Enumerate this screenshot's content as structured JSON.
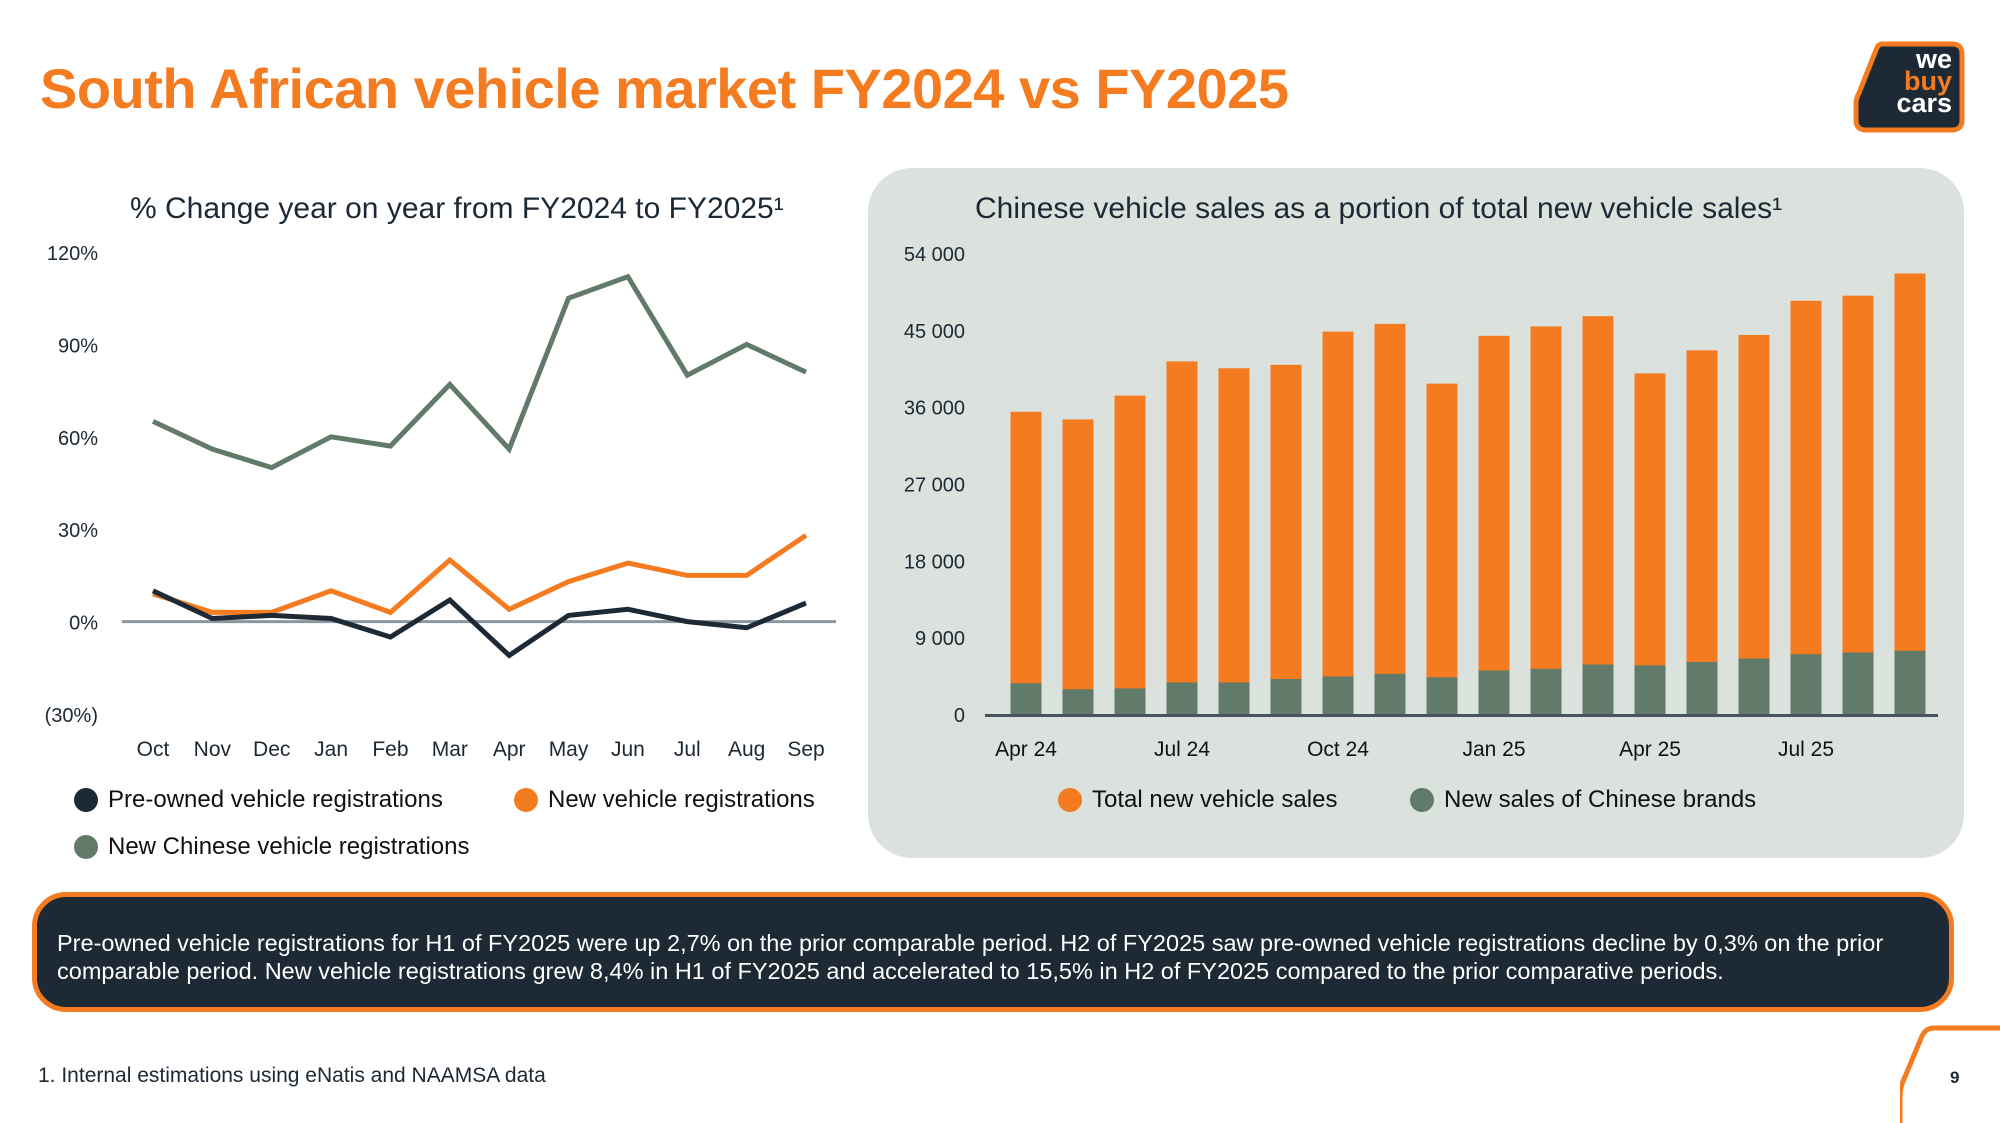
{
  "page": {
    "title": "South African vehicle market FY2024 vs FY2025",
    "logo": {
      "line1": "we",
      "line2": "buy",
      "line3": "cars"
    },
    "summary": "Pre-owned vehicle registrations for H1 of FY2025 were up 2,7% on the prior comparable period. H2 of FY2025 saw pre-owned vehicle registrations decline by 0,3% on the prior comparable period. New vehicle registrations grew 8,4% in H1 of FY2025 and accelerated to 15,5% in H2 of FY2025 compared to the prior comparative periods.",
    "footnote": "1.   Internal estimations using eNatis and NAAMSA data",
    "page_number": "9",
    "colors": {
      "accent": "#f47b20",
      "dark": "#1d2935",
      "green": "#627a69",
      "panel": "#dbe1dd"
    }
  },
  "chart_data": [
    {
      "type": "line",
      "title": "% Change year on year from FY2024 to FY2025¹",
      "xlabel": "",
      "ylabel": "",
      "categories": [
        "Oct",
        "Nov",
        "Dec",
        "Jan",
        "Feb",
        "Mar",
        "Apr",
        "May",
        "Jun",
        "Jul",
        "Aug",
        "Sep"
      ],
      "ylim": [
        -30,
        120
      ],
      "yticks": [
        120,
        90,
        60,
        30,
        0,
        -30
      ],
      "ytick_labels": [
        "120%",
        "90%",
        "60%",
        "30%",
        "0%",
        "(30%)"
      ],
      "grid": false,
      "legend_position": "bottom",
      "series": [
        {
          "name": "Pre-owned vehicle registrations",
          "color": "#1d2935",
          "values": [
            10,
            1,
            2,
            1,
            -5,
            7,
            -11,
            2,
            4,
            0,
            -2,
            6
          ]
        },
        {
          "name": "New vehicle registrations",
          "color": "#f47b20",
          "values": [
            9,
            3,
            3,
            10,
            3,
            20,
            4,
            13,
            19,
            15,
            15,
            28
          ]
        },
        {
          "name": "New Chinese vehicle registrations",
          "color": "#627a69",
          "values": [
            65,
            56,
            50,
            60,
            57,
            77,
            56,
            105,
            112,
            80,
            90,
            81
          ]
        }
      ]
    },
    {
      "type": "bar",
      "stacked": "overlay",
      "title": "Chinese vehicle sales as a portion of total new vehicle sales¹",
      "xlabel": "",
      "ylabel": "",
      "categories": [
        "Apr 24",
        "May 24",
        "Jun 24",
        "Jul 24",
        "Aug 24",
        "Sep 24",
        "Oct 24",
        "Nov 24",
        "Dec 24",
        "Jan 25",
        "Feb 25",
        "Mar 25",
        "Apr 25",
        "May 25",
        "Jun 25",
        "Jul 25",
        "Aug 25",
        "Sep 25"
      ],
      "xtick_labels": [
        "Apr 24",
        "",
        "",
        "Jul 24",
        "",
        "",
        "Oct 24",
        "",
        "",
        "Jan 25",
        "",
        "",
        "Apr 25",
        "",
        "",
        "Jul 25",
        "",
        ""
      ],
      "ylim": [
        0,
        54000
      ],
      "yticks": [
        0,
        9000,
        18000,
        27000,
        36000,
        45000,
        54000
      ],
      "ytick_labels": [
        "0",
        "9 000",
        "18 000",
        "27 000",
        "36 000",
        "45 000",
        "54 000"
      ],
      "grid": false,
      "legend_position": "bottom",
      "series": [
        {
          "name": "Total new vehicle sales",
          "color": "#f47b20",
          "values": [
            35400,
            34500,
            37300,
            41300,
            40500,
            40900,
            44800,
            45700,
            38700,
            44300,
            45400,
            46600,
            39900,
            42600,
            44400,
            48400,
            49000,
            51600
          ]
        },
        {
          "name": "New sales of Chinese brands",
          "color": "#627a69",
          "values": [
            3600,
            2900,
            3000,
            3700,
            3700,
            4100,
            4400,
            4700,
            4300,
            5100,
            5300,
            5800,
            5700,
            6100,
            6500,
            7000,
            7200,
            7400
          ]
        }
      ]
    }
  ]
}
